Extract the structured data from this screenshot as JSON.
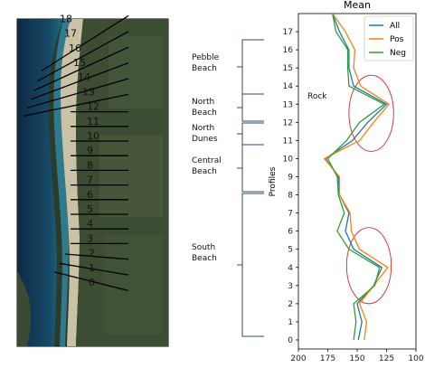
{
  "segments": [
    {
      "name": "Pebble Beach",
      "lines": [
        "Pebble",
        "Beach"
      ]
    },
    {
      "name": "North Beach",
      "lines": [
        "North",
        "Beach"
      ]
    },
    {
      "name": "North Dunes",
      "lines": [
        "North",
        "Dunes"
      ]
    },
    {
      "name": "Central Beach",
      "lines": [
        "Central",
        "Beach"
      ]
    },
    {
      "name": "South Beach",
      "lines": [
        "South",
        "Beach"
      ]
    }
  ],
  "profile_labels": [
    "0",
    "1",
    "2",
    "3",
    "4",
    "5",
    "6",
    "7",
    "8",
    "9",
    "10",
    "11",
    "12",
    "13",
    "14",
    "15",
    "16",
    "17",
    "18"
  ],
  "annotation": "Rock",
  "colors": {
    "All": "#1f77b4",
    "Pos": "#ff7f0e",
    "Neg": "#2ca02c",
    "circle": "#d62728",
    "bracket": "#2c4a6a"
  },
  "chart_data": {
    "type": "line",
    "orientation": "horizontal",
    "title": "Mean",
    "xlabel": "",
    "ylabel": "Profiles",
    "xlim": [
      200,
      100
    ],
    "ylim": [
      -0.5,
      18
    ],
    "x_ticks": [
      200,
      175,
      150,
      125,
      100
    ],
    "y_ticks": [
      0,
      1,
      2,
      3,
      4,
      5,
      6,
      7,
      8,
      9,
      10,
      11,
      12,
      13,
      14,
      15,
      16,
      17
    ],
    "legend_position": "top-right",
    "grid": false,
    "y": [
      0,
      1,
      2,
      3,
      4,
      5,
      6,
      7,
      8,
      9,
      10,
      11,
      12,
      13,
      14,
      15,
      16,
      17,
      18
    ],
    "series": [
      {
        "name": "All",
        "values": [
          149,
          146,
          150,
          136,
          129,
          153,
          160,
          157,
          165,
          166,
          177,
          154,
          141,
          125,
          153,
          157,
          157,
          165,
          171
        ]
      },
      {
        "name": "Pos",
        "values": [
          144,
          142,
          148,
          136,
          124,
          148,
          155,
          156,
          165,
          165,
          178,
          148,
          136,
          123,
          147,
          153,
          152,
          160,
          171
        ]
      },
      {
        "name": "Neg",
        "values": [
          153,
          151,
          153,
          135,
          131,
          157,
          167,
          161,
          166,
          167,
          175,
          159,
          148,
          127,
          157,
          158,
          158,
          168,
          171
        ]
      }
    ],
    "circles": [
      {
        "cx": 138,
        "cy": 12.5,
        "rx": 19,
        "ry": 2.1
      },
      {
        "cx": 140,
        "cy": 4.1,
        "rx": 19,
        "ry": 2.1
      }
    ]
  }
}
